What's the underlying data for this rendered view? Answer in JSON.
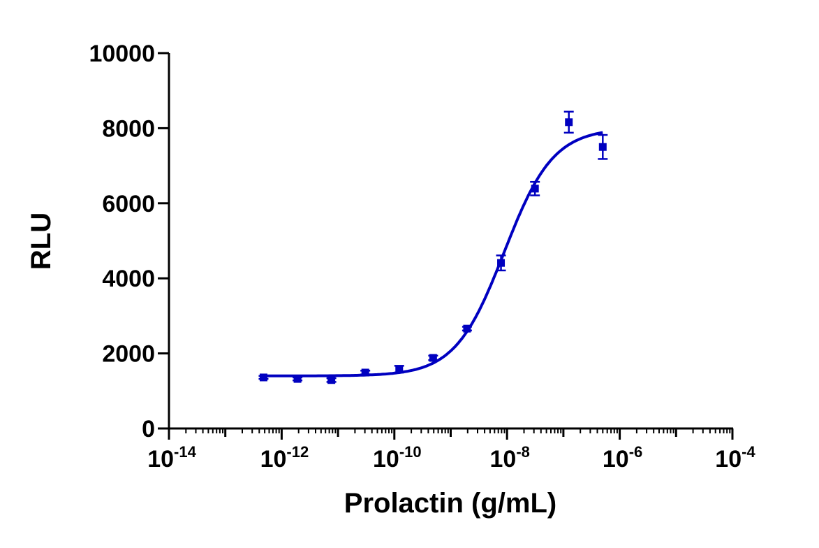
{
  "chart_data": {
    "type": "scatter",
    "title": "",
    "xlabel": "Prolactin (g/mL)",
    "ylabel": "RLU",
    "x_scale": "log",
    "xlim": [
      1e-14,
      0.0001
    ],
    "ylim": [
      0,
      10000
    ],
    "x_tick_labels": [
      {
        "base": "10",
        "exp": "-14"
      },
      {
        "base": "10",
        "exp": "-12"
      },
      {
        "base": "10",
        "exp": "-10"
      },
      {
        "base": "10",
        "exp": "-8"
      },
      {
        "base": "10",
        "exp": "-6"
      },
      {
        "base": "10",
        "exp": "-4"
      }
    ],
    "x_tick_values": [
      1e-14,
      1e-12,
      1e-10,
      1e-08,
      1e-06,
      0.0001
    ],
    "y_ticks": [
      0,
      2000,
      4000,
      6000,
      8000,
      10000
    ],
    "y_tick_labels": [
      "0",
      "2000",
      "4000",
      "6000",
      "8000",
      "10000"
    ],
    "grid": false,
    "legend": "none",
    "color": "#0000c0",
    "marker": "square",
    "series": [
      {
        "x": [
          4.77e-13,
          1.91e-12,
          7.63e-12,
          3.05e-11,
          1.22e-10,
          4.88e-10,
          1.95e-09,
          7.81e-09,
          3.13e-08,
          1.25e-07,
          5e-07
        ],
        "y": [
          1360,
          1320,
          1290,
          1490,
          1580,
          1880,
          2660,
          4410,
          6390,
          8160,
          7500
        ],
        "error": [
          40,
          40,
          50,
          50,
          90,
          60,
          50,
          200,
          180,
          280,
          320
        ]
      }
    ],
    "fit_curve": {
      "model": "4PL",
      "bottom": 1400,
      "top": 8000,
      "logEC50": -8.05,
      "hill": 1.0
    }
  }
}
